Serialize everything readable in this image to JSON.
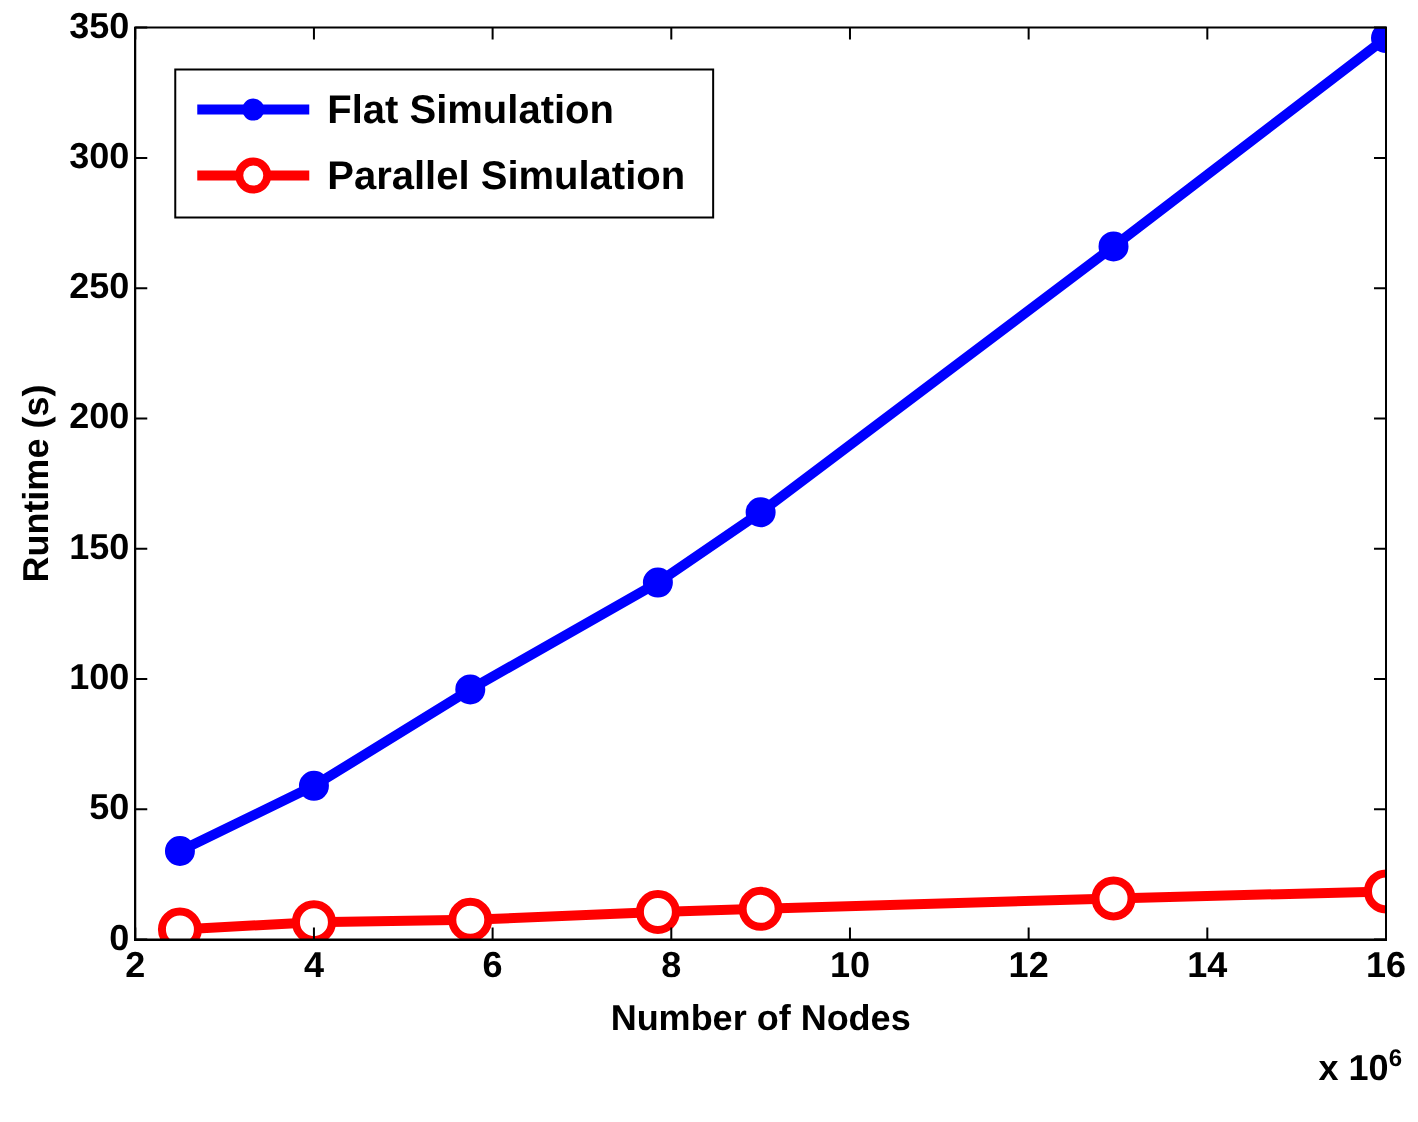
{
  "chart_data": {
    "type": "line",
    "xlabel": "Number of Nodes",
    "ylabel": "Runtime (s)",
    "x": [
      2.5,
      4,
      5.75,
      7.85,
      9,
      12.95,
      16
    ],
    "series": [
      {
        "name": "Flat Simulation",
        "color": "#0000ff",
        "values": [
          34,
          59,
          96,
          137,
          164,
          266,
          346
        ]
      },
      {
        "name": "Parallel Simulation",
        "color": "#ff0000",
        "values": [
          3.9,
          6.7,
          7.6,
          10.6,
          11.8,
          15.8,
          18.5
        ]
      }
    ],
    "xlim": [
      2,
      16
    ],
    "xticks": [
      2,
      4,
      6,
      8,
      10,
      12,
      14,
      16
    ],
    "ylim": [
      0,
      350
    ],
    "yticks": [
      0,
      50,
      100,
      150,
      200,
      250,
      300,
      350
    ],
    "annotations": [
      "x 10$^{6}$"
    ],
    "legend": "top left",
    "marker": "circle",
    "line_style": "solid",
    "grid": false
  }
}
